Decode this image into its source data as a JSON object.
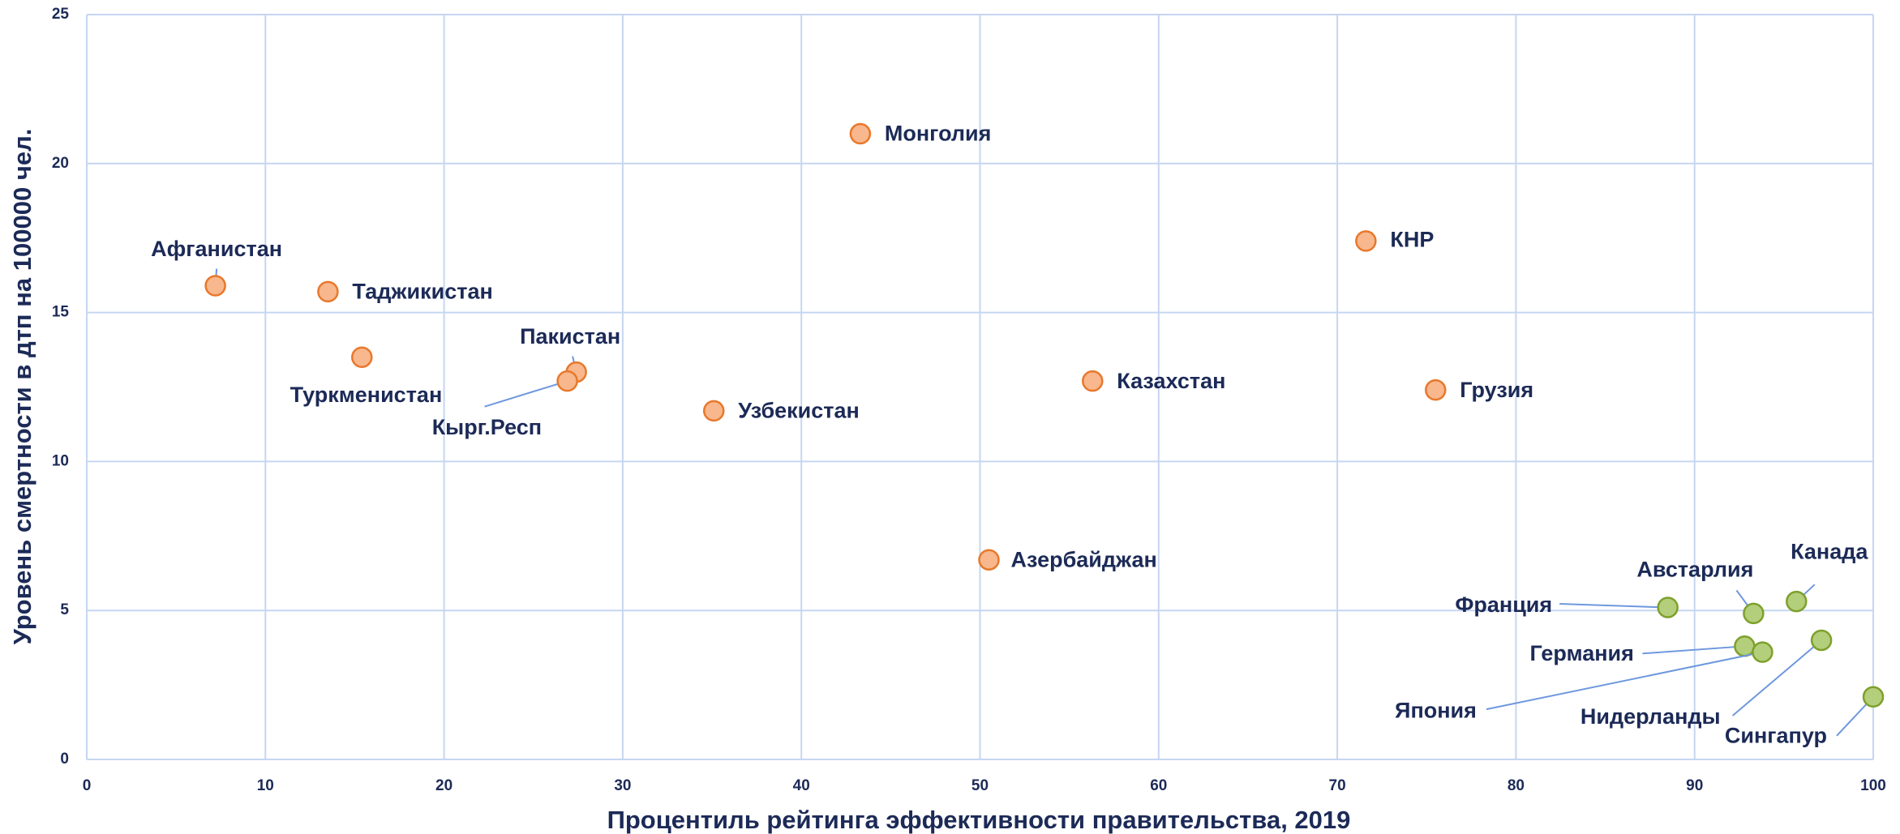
{
  "chart_data": {
    "type": "scatter",
    "xlabel": "Процентиль рейтинга эффективности правительства, 2019",
    "ylabel": "Уровень смертности в дтп на 100000 чел.",
    "xlim": [
      0,
      100
    ],
    "xticks": [
      0,
      10,
      20,
      30,
      40,
      50,
      60,
      70,
      80,
      90,
      100
    ],
    "ylim": [
      0,
      25
    ],
    "yticks": [
      0,
      5,
      10,
      15,
      20,
      25
    ],
    "grid": true,
    "series": [
      {
        "color": "#f8b78c",
        "x": [
          7.2,
          13.5,
          15.4,
          27.4,
          26.9,
          35.1,
          43.3,
          50.5,
          56.3,
          71.6,
          75.5
        ],
        "values": [
          15.9,
          15.7,
          13.5,
          13.0,
          12.7,
          11.7,
          21.0,
          6.7,
          12.7,
          17.4,
          12.4
        ],
        "labels": [
          "Афганистан",
          "Таджикистан",
          "Туркменистан",
          "Пакистан",
          "Кырг.Респ",
          "Узбекистан",
          "Монголия",
          "Азербайджан",
          "Казахстан",
          "КНР",
          "Грузия"
        ]
      },
      {
        "color": "#b3cf7b",
        "x": [
          88.5,
          93.3,
          95.7,
          92.8,
          93.8,
          97.1,
          100
        ],
        "values": [
          5.1,
          4.9,
          5.3,
          3.8,
          3.6,
          4.0,
          2.1
        ],
        "labels": [
          "Франция",
          "Австарлия",
          "Канада",
          "Германия",
          "Япония",
          "Нидерланды",
          "Сингапур"
        ]
      }
    ]
  }
}
